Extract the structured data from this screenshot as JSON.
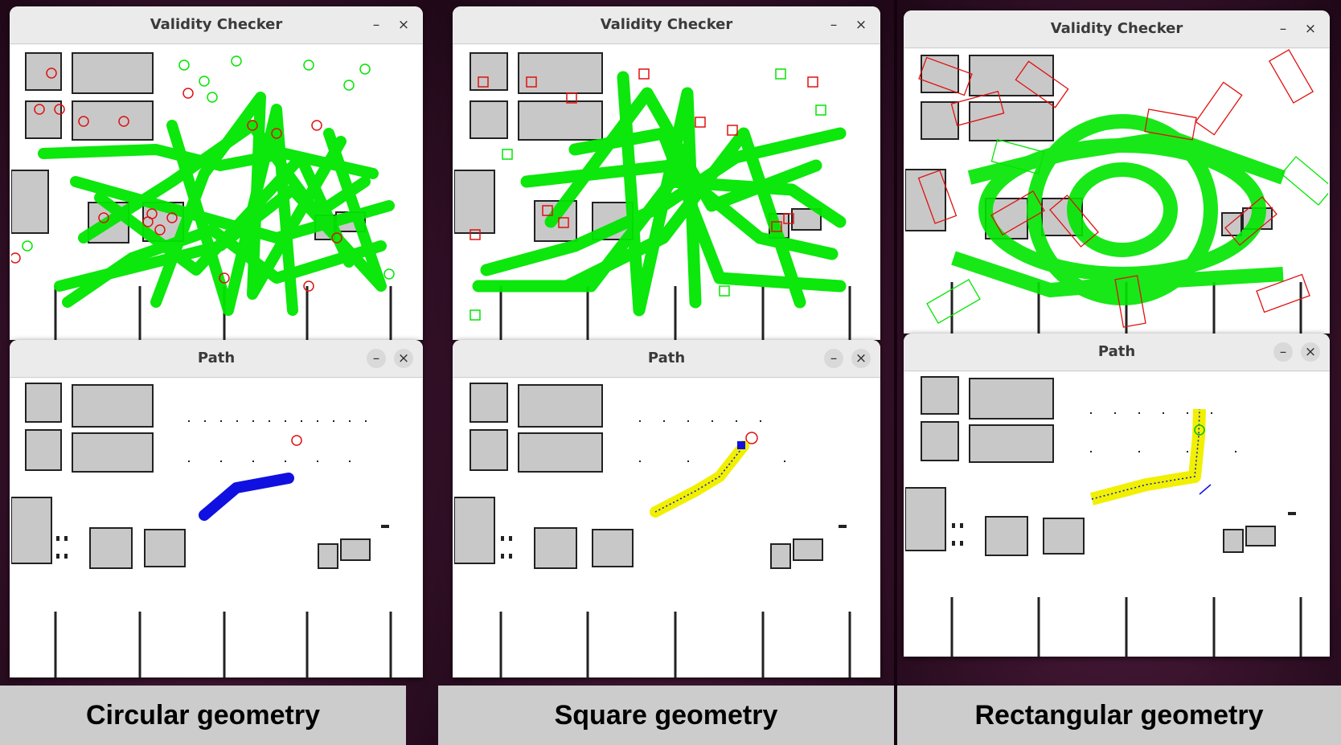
{
  "columns": [
    {
      "validity_window": {
        "title": "Validity Checker",
        "minimize": "–",
        "close": "×"
      },
      "path_window": {
        "title": "Path",
        "minimize": "–",
        "close": "×"
      },
      "caption": "Circular geometry"
    },
    {
      "validity_window": {
        "title": "Validity Checker",
        "minimize": "–",
        "close": "×"
      },
      "path_window": {
        "title": "Path",
        "minimize": "–",
        "close": "×"
      },
      "caption": "Square geometry"
    },
    {
      "validity_window": {
        "title": "Validity Checker",
        "minimize": "–",
        "close": "×"
      },
      "path_window": {
        "title": "Path",
        "minimize": "–",
        "close": "×"
      },
      "caption": "Rectangular geometry"
    }
  ],
  "colors": {
    "valid_sample": "#00e600",
    "invalid_sample": "#e01010",
    "path_circle": "#1010e0",
    "path_footprint": "#f0f000",
    "building": "#c8c8c8",
    "caption_bar": "#cccccc"
  }
}
